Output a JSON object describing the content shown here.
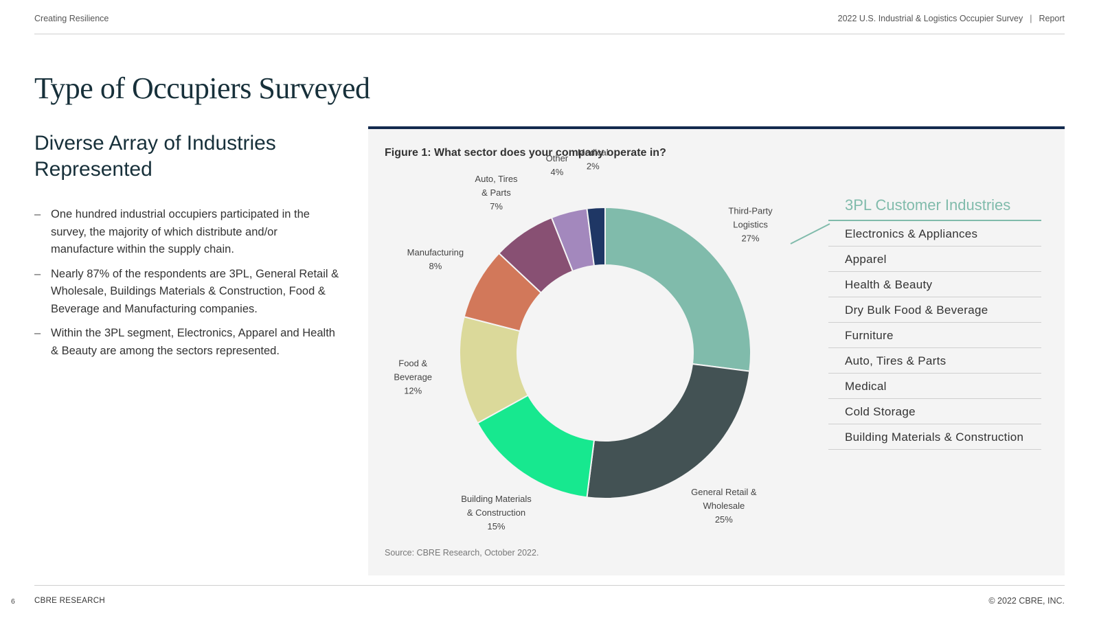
{
  "header": {
    "left": "Creating Resilience",
    "right_title": "2022 U.S. Industrial & Logistics Occupier Survey",
    "right_separator": "|",
    "right_section": "Report"
  },
  "page_title": "Type of Occupiers Surveyed",
  "subhead": "Diverse Array of Industries Represented",
  "bullets": [
    {
      "dash": "–",
      "text": "One hundred industrial occupiers participated in the survey, the majority of which distribute and/or manufacture within the supply chain."
    },
    {
      "dash": "–",
      "text": "Nearly 87% of the respondents are 3PL, General Retail & Wholesale, Buildings Materials & Construction, Food & Beverage and Manufacturing companies."
    },
    {
      "dash": "–",
      "text": "Within the 3PL segment, Electronics, Apparel and Health & Beauty are among the sectors represented."
    }
  ],
  "figure": {
    "title": "Figure 1: What sector does your company operate in?",
    "source": "Source: CBRE Research, October 2022."
  },
  "chart_data": {
    "type": "pie",
    "subtype": "donut",
    "title": "Figure 1: What sector does your company operate in?",
    "unit": "%",
    "slices": [
      {
        "name": "Third-Party Logistics",
        "lines": [
          "Third-Party",
          "Logistics"
        ],
        "value": 27,
        "label": "27%",
        "color": "#80bbab"
      },
      {
        "name": "General Retail & Wholesale",
        "lines": [
          "General Retail &",
          "Wholesale"
        ],
        "value": 25,
        "label": "25%",
        "color": "#435254"
      },
      {
        "name": "Building Materials & Construction",
        "lines": [
          "Building Materials",
          "& Construction"
        ],
        "value": 15,
        "label": "15%",
        "color": "#17e88f"
      },
      {
        "name": "Food & Beverage",
        "lines": [
          "Food &",
          "Beverage"
        ],
        "value": 12,
        "label": "12%",
        "color": "#dbd99a"
      },
      {
        "name": "Manufacturing",
        "lines": [
          "Manufacturing"
        ],
        "value": 8,
        "label": "8%",
        "color": "#d2785a"
      },
      {
        "name": "Auto, Tires & Parts",
        "lines": [
          "Auto, Tires",
          "& Parts"
        ],
        "value": 7,
        "label": "7%",
        "color": "#885073"
      },
      {
        "name": "Other",
        "lines": [
          "Other"
        ],
        "value": 4,
        "label": "4%",
        "color": "#a388bd"
      },
      {
        "name": "Medical",
        "lines": [
          "Medical"
        ],
        "value": 2,
        "label": "2%",
        "color": "#1f3765"
      }
    ]
  },
  "customer_industries": {
    "title": "3PL Customer Industries",
    "accent_color": "#80bbab",
    "items": [
      "Electronics & Appliances",
      "Apparel",
      "Health & Beauty",
      "Dry Bulk Food & Beverage",
      "Furniture",
      "Auto, Tires & Parts",
      "Medical",
      "Cold Storage",
      "Building Materials & Construction"
    ]
  },
  "footer": {
    "page_number": "6",
    "brand": "CBRE RESEARCH",
    "copyright": "© 2022 CBRE, INC."
  }
}
